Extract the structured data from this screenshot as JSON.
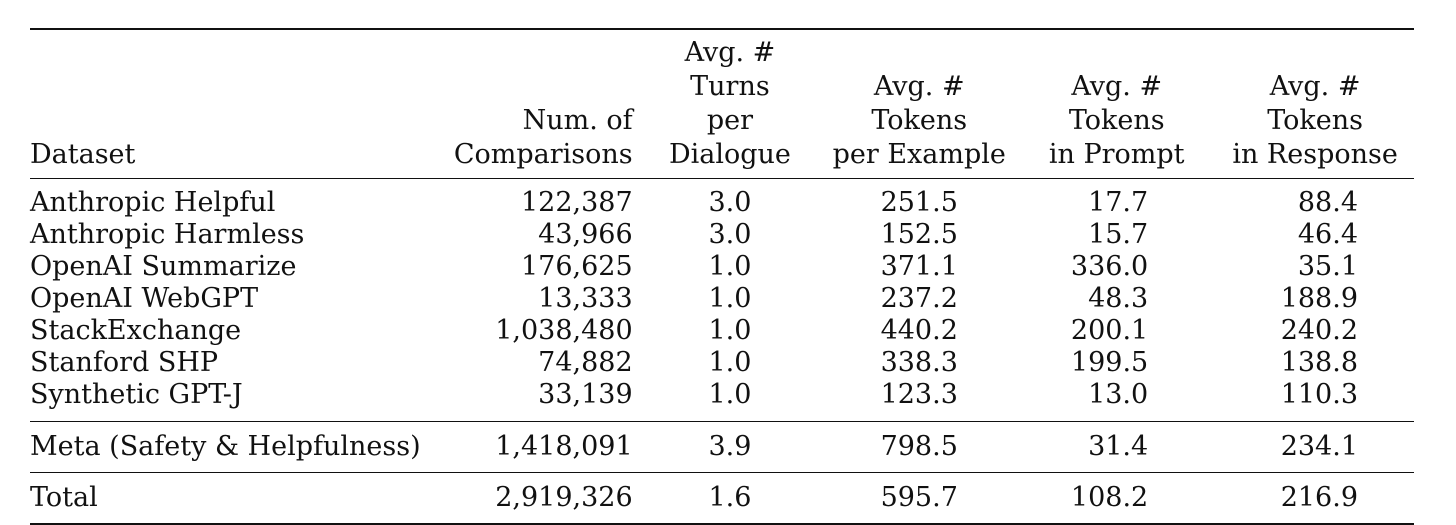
{
  "table": {
    "headers": {
      "dataset": "Dataset",
      "comparisons": [
        "Num. of",
        "Comparisons"
      ],
      "turns": [
        "Avg. # Turns",
        "per Dialogue"
      ],
      "tokens_example": [
        "Avg. # Tokens",
        "per Example"
      ],
      "tokens_prompt": [
        "Avg. # Tokens",
        "in Prompt"
      ],
      "tokens_response": [
        "Avg. # Tokens",
        "in Response"
      ]
    },
    "rows": [
      {
        "dataset": "Anthropic Helpful",
        "comparisons": "122,387",
        "turns": "3.0",
        "tokens_example": "251.5",
        "tokens_prompt": "17.7",
        "tokens_response": "88.4"
      },
      {
        "dataset": "Anthropic Harmless",
        "comparisons": "43,966",
        "turns": "3.0",
        "tokens_example": "152.5",
        "tokens_prompt": "15.7",
        "tokens_response": "46.4"
      },
      {
        "dataset": "OpenAI Summarize",
        "comparisons": "176,625",
        "turns": "1.0",
        "tokens_example": "371.1",
        "tokens_prompt": "336.0",
        "tokens_response": "35.1"
      },
      {
        "dataset": "OpenAI WebGPT",
        "comparisons": "13,333",
        "turns": "1.0",
        "tokens_example": "237.2",
        "tokens_prompt": "48.3",
        "tokens_response": "188.9"
      },
      {
        "dataset": "StackExchange",
        "comparisons": "1,038,480",
        "turns": "1.0",
        "tokens_example": "440.2",
        "tokens_prompt": "200.1",
        "tokens_response": "240.2"
      },
      {
        "dataset": "Stanford SHP",
        "comparisons": "74,882",
        "turns": "1.0",
        "tokens_example": "338.3",
        "tokens_prompt": "199.5",
        "tokens_response": "138.8"
      },
      {
        "dataset": "Synthetic GPT-J",
        "comparisons": "33,139",
        "turns": "1.0",
        "tokens_example": "123.3",
        "tokens_prompt": "13.0",
        "tokens_response": "110.3"
      }
    ],
    "meta": {
      "dataset": "Meta (Safety & Helpfulness)",
      "comparisons": "1,418,091",
      "turns": "3.9",
      "tokens_example": "798.5",
      "tokens_prompt": "31.4",
      "tokens_response": "234.1"
    },
    "total": {
      "dataset": "Total",
      "comparisons": "2,919,326",
      "turns": "1.6",
      "tokens_example": "595.7",
      "tokens_prompt": "108.2",
      "tokens_response": "216.9"
    }
  }
}
